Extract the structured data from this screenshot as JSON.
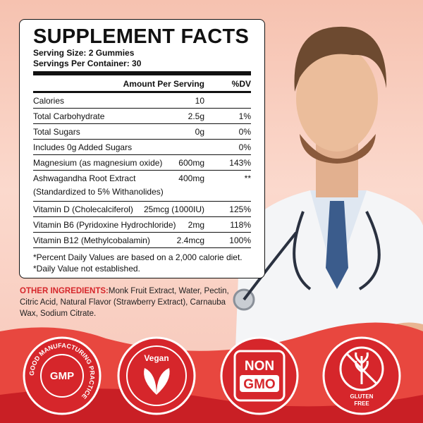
{
  "panel": {
    "title": "SUPPLEMENT FACTS",
    "serving_size": "Serving Size: 2 Gummies",
    "servings": "Servings Per Container: 30",
    "header": {
      "amount": "Amount Per Serving",
      "dv": "%DV"
    },
    "rows": [
      {
        "name": "Calories",
        "amount": "10"
      },
      {
        "name": "Total Carbohydrate",
        "amount": "2.5g",
        "dv": "1%"
      },
      {
        "name": "Total Sugars",
        "amount": "0g",
        "dv": "0%"
      },
      {
        "name": "Includes 0g Added Sugars",
        "dv": "0%"
      },
      {
        "name": "Magnesium (as magnesium oxide)",
        "amount": "600mg",
        "dv": "143%"
      },
      {
        "name": "Ashwagandha Root Extract",
        "note": "(Standardized to 5% Withanolides)",
        "amount": "400mg",
        "dv": "**"
      },
      {
        "name": "Vitamin D (Cholecalciferol)",
        "amount": "25mcg (1000IU)",
        "dv": "125%"
      },
      {
        "name": "Vitamin B6 (Pyridoxine Hydrochloride)",
        "amount": "2mg",
        "dv": "118%"
      },
      {
        "name": "Vitamin B12 (Methylcobalamin)",
        "amount": "2.4mcg",
        "dv": "100%"
      }
    ],
    "footnotes": [
      "*Percent Daily Values are based on a 2,000 calorie diet.",
      "*Daily Value not established."
    ]
  },
  "ingredients": {
    "label": "OTHER INGREDIENTS:",
    "text": "Monk Fruit Extract, Water, Pectin, Citric Acid, Natural Flavor (Strawberry Extract), Carnauba Wax, Sodium Citrate."
  },
  "badges": {
    "gmp": {
      "label": "GMP",
      "ring": "GOOD MANUFACTURING PRACTICE"
    },
    "vegan": {
      "label": "Vegan"
    },
    "nongmo": {
      "top": "NON",
      "bottom": "GMO"
    },
    "gluten": {
      "top": "GLUTEN",
      "bottom": "FREE"
    }
  }
}
